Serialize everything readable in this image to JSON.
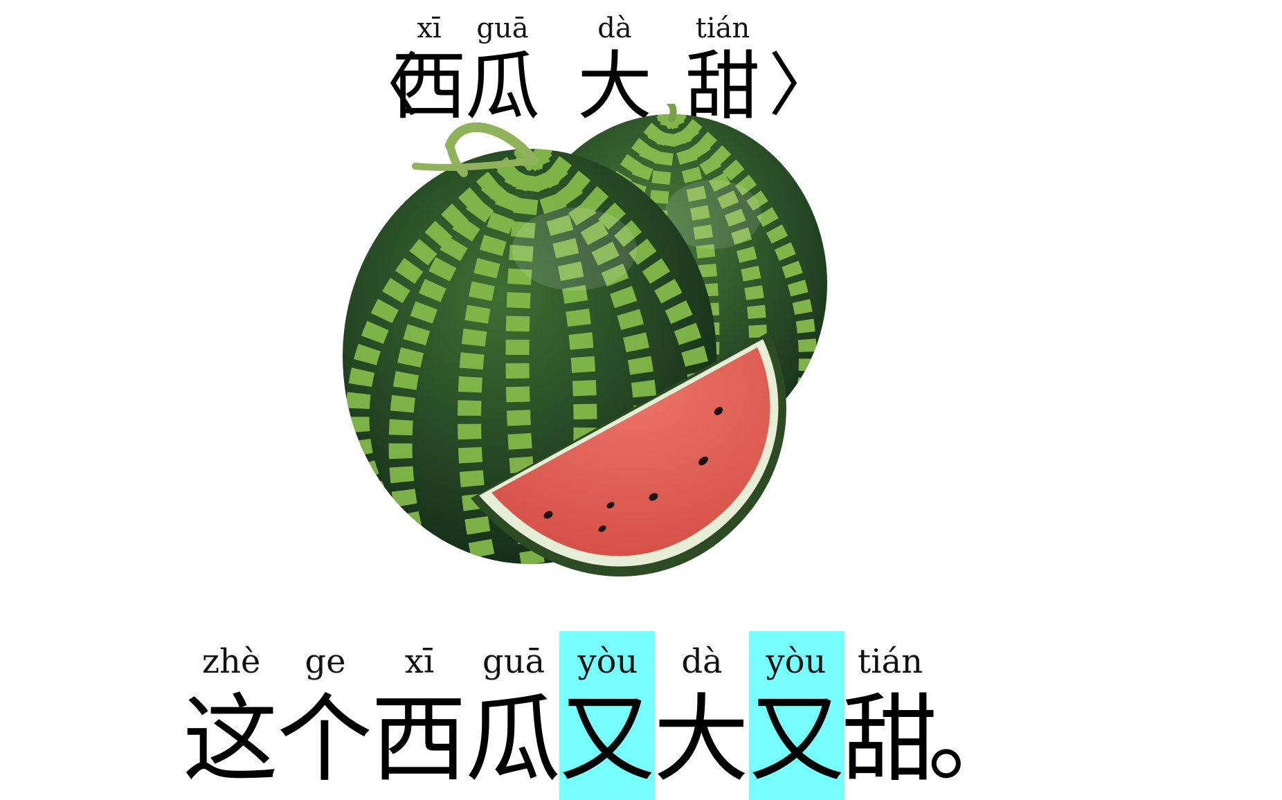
{
  "title": {
    "open_bracket": "〈",
    "close_bracket": "〉",
    "chars": [
      {
        "hanzi": "西",
        "pinyin": "xī"
      },
      {
        "hanzi": "瓜",
        "pinyin": "guā"
      },
      {
        "hanzi": "大",
        "pinyin": "dà"
      },
      {
        "hanzi": "甜",
        "pinyin": "tián"
      }
    ]
  },
  "illustration": {
    "icon": "watermelon-icon"
  },
  "sentence": {
    "highlight_color": "#77ffff",
    "chars": [
      {
        "hanzi": "这",
        "pinyin": "zhè",
        "highlight": false
      },
      {
        "hanzi": "个",
        "pinyin": "ge",
        "highlight": false
      },
      {
        "hanzi": "西",
        "pinyin": "xī",
        "highlight": false
      },
      {
        "hanzi": "瓜",
        "pinyin": "guā",
        "highlight": false
      },
      {
        "hanzi": "又",
        "pinyin": "yòu",
        "highlight": true
      },
      {
        "hanzi": "大",
        "pinyin": "dà",
        "highlight": false
      },
      {
        "hanzi": "又",
        "pinyin": "yòu",
        "highlight": true
      },
      {
        "hanzi": "甜",
        "pinyin": "tián",
        "highlight": false
      },
      {
        "hanzi": "。",
        "pinyin": "",
        "highlight": false
      }
    ]
  }
}
